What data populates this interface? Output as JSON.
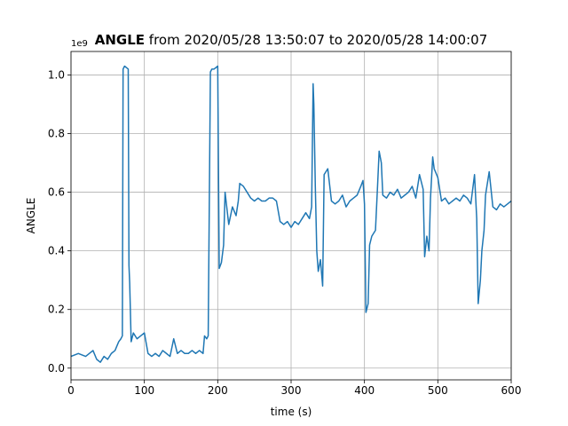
{
  "chart_data": {
    "type": "line",
    "title_bold": "ANGLE",
    "title_rest": " from 2020/05/28 13:50:07 to 2020/05/28 14:00:07",
    "xlabel": "time (s)",
    "ylabel": "ANGLE",
    "y_offset_label": "1e9",
    "xlim": [
      0,
      600
    ],
    "ylim": [
      -0.04,
      1.08
    ],
    "xticks": [
      0,
      100,
      200,
      300,
      400,
      500,
      600
    ],
    "xtick_labels": [
      "0",
      "100",
      "200",
      "300",
      "400",
      "500",
      "600"
    ],
    "yticks": [
      0.0,
      0.2,
      0.4,
      0.6,
      0.8,
      1.0
    ],
    "ytick_labels": [
      "0.0",
      "0.2",
      "0.4",
      "0.6",
      "0.8",
      "1.0"
    ],
    "grid": true,
    "line_color": "#1f77b4",
    "series": [
      {
        "x": [
          0,
          10,
          20,
          30,
          35,
          40,
          45,
          50,
          55,
          60,
          65,
          68,
          70,
          71,
          73,
          78,
          79,
          80,
          82,
          85,
          90,
          95,
          100,
          105,
          110,
          115,
          120,
          125,
          130,
          135,
          140,
          145,
          150,
          155,
          160,
          165,
          170,
          175,
          180,
          182,
          185,
          187,
          190,
          192,
          195,
          200,
          202,
          205,
          208,
          210,
          215,
          220,
          225,
          228,
          230,
          235,
          240,
          245,
          250,
          255,
          260,
          265,
          270,
          275,
          280,
          285,
          290,
          295,
          300,
          305,
          310,
          315,
          320,
          325,
          328,
          330,
          331,
          333,
          335,
          337,
          340,
          343,
          345,
          350,
          355,
          360,
          365,
          370,
          375,
          380,
          385,
          390,
          395,
          398,
          400,
          402,
          405,
          407,
          410,
          415,
          418,
          420,
          423,
          425,
          430,
          435,
          440,
          445,
          450,
          455,
          460,
          465,
          470,
          475,
          480,
          482,
          485,
          488,
          490,
          493,
          495,
          500,
          505,
          510,
          515,
          520,
          525,
          530,
          535,
          540,
          545,
          550,
          553,
          555,
          558,
          560,
          563,
          565,
          570,
          575,
          580,
          585,
          590,
          595,
          600
        ],
        "y": [
          0.04,
          0.05,
          0.04,
          0.06,
          0.03,
          0.02,
          0.04,
          0.03,
          0.05,
          0.06,
          0.09,
          0.1,
          0.11,
          1.02,
          1.03,
          1.02,
          0.35,
          0.29,
          0.09,
          0.12,
          0.1,
          0.11,
          0.12,
          0.05,
          0.04,
          0.05,
          0.04,
          0.06,
          0.05,
          0.04,
          0.1,
          0.05,
          0.06,
          0.05,
          0.05,
          0.06,
          0.05,
          0.06,
          0.05,
          0.11,
          0.1,
          0.11,
          1.01,
          1.02,
          1.02,
          1.03,
          0.34,
          0.36,
          0.42,
          0.6,
          0.49,
          0.55,
          0.52,
          0.57,
          0.63,
          0.62,
          0.6,
          0.58,
          0.57,
          0.58,
          0.57,
          0.57,
          0.58,
          0.58,
          0.57,
          0.5,
          0.49,
          0.5,
          0.48,
          0.5,
          0.49,
          0.51,
          0.53,
          0.51,
          0.55,
          0.97,
          0.9,
          0.62,
          0.4,
          0.33,
          0.37,
          0.28,
          0.66,
          0.68,
          0.57,
          0.56,
          0.57,
          0.59,
          0.55,
          0.57,
          0.58,
          0.59,
          0.62,
          0.64,
          0.56,
          0.19,
          0.22,
          0.42,
          0.45,
          0.47,
          0.63,
          0.74,
          0.7,
          0.59,
          0.58,
          0.6,
          0.59,
          0.61,
          0.58,
          0.59,
          0.6,
          0.62,
          0.58,
          0.66,
          0.61,
          0.38,
          0.45,
          0.4,
          0.58,
          0.72,
          0.68,
          0.65,
          0.57,
          0.58,
          0.56,
          0.57,
          0.58,
          0.57,
          0.59,
          0.58,
          0.56,
          0.66,
          0.51,
          0.22,
          0.3,
          0.4,
          0.47,
          0.59,
          0.67,
          0.55,
          0.54,
          0.56,
          0.55,
          0.56,
          0.57
        ]
      }
    ]
  }
}
